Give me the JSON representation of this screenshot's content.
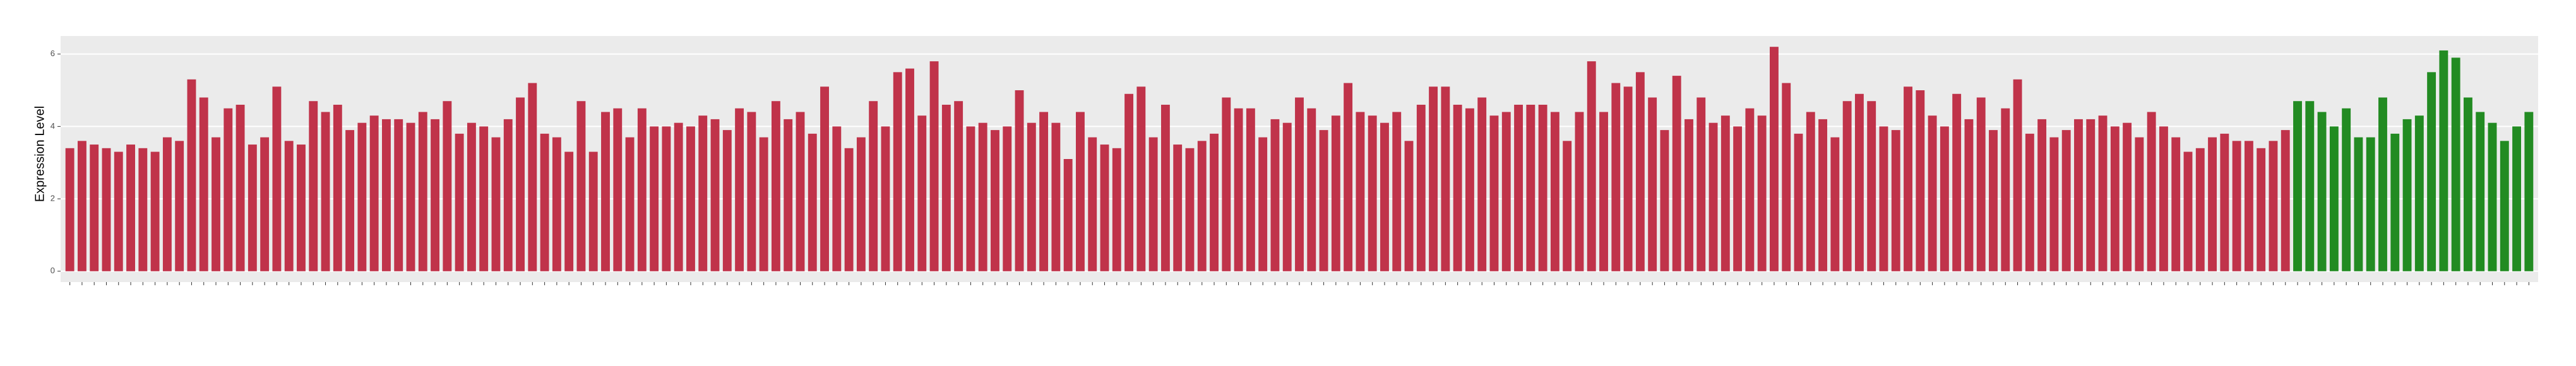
{
  "chart_data": {
    "type": "bar",
    "y_label": "Expression Level",
    "ylim": [
      -0.3,
      6.5
    ],
    "yticks": [
      0,
      2,
      4,
      6
    ],
    "grid": true,
    "groups": [
      {
        "color": "#c0334a",
        "values": [
          3.4,
          3.6,
          3.5,
          3.4,
          3.3,
          3.5,
          3.4,
          3.3,
          3.7,
          3.6,
          5.3,
          4.8,
          3.7,
          4.5,
          4.6,
          3.5,
          3.7,
          5.1,
          3.6,
          3.5,
          4.7,
          4.4,
          4.6,
          3.9,
          4.1,
          4.3,
          4.2,
          4.2,
          4.1,
          4.4,
          4.2,
          4.7,
          3.8,
          4.1,
          4.0,
          3.7,
          4.2,
          4.8,
          5.2,
          3.8,
          3.7,
          3.3,
          4.7,
          3.3,
          4.4,
          4.5,
          3.7,
          4.5,
          4.0,
          4.0,
          4.1,
          4.0,
          4.3,
          4.2,
          3.9,
          4.5,
          4.4,
          3.7,
          4.7,
          4.2,
          4.4,
          3.8,
          5.1,
          4.0,
          3.4,
          3.7,
          4.7,
          4.0,
          5.5,
          5.6,
          4.3,
          5.8,
          4.6,
          4.7,
          4.0,
          4.1,
          3.9,
          4.0,
          5.0,
          4.1,
          4.4,
          4.1,
          3.1,
          4.4,
          3.7,
          3.5,
          3.4,
          4.9,
          5.1,
          3.7,
          4.6,
          3.5,
          3.4,
          3.6,
          3.8,
          4.8,
          4.5,
          4.5,
          3.7,
          4.2,
          4.1,
          4.8,
          4.5,
          3.9,
          4.3,
          5.2,
          4.4,
          4.3,
          4.1,
          4.4,
          3.6,
          4.6,
          5.1,
          5.1,
          4.6,
          4.5,
          4.8,
          4.3,
          4.4,
          4.6,
          4.6,
          4.6,
          4.4,
          3.6,
          4.4,
          5.8,
          4.4,
          5.2,
          5.1,
          5.5,
          4.8,
          3.9,
          5.4,
          4.2,
          4.8,
          4.1,
          4.3,
          4.0,
          4.5,
          4.3,
          6.2,
          5.2,
          3.8,
          4.4,
          4.2,
          3.7,
          4.7,
          4.9,
          4.7,
          4.0,
          3.9,
          5.1,
          5.0,
          4.3,
          4.0,
          4.9,
          4.2,
          4.8,
          3.9,
          4.5,
          5.3,
          3.8,
          4.2,
          3.7,
          3.9,
          4.2,
          4.2,
          4.3,
          4.0,
          4.1,
          3.7,
          4.4,
          4.0,
          3.7,
          3.3,
          3.4,
          3.7,
          3.8,
          3.6,
          3.6,
          3.4,
          3.6,
          3.9
        ]
      },
      {
        "color": "#228b22",
        "values": [
          4.7,
          4.7,
          4.4,
          4.0,
          4.5,
          3.7,
          3.7,
          4.8,
          3.8,
          4.2,
          4.3,
          5.5,
          6.1,
          5.9,
          4.8,
          4.4,
          4.1,
          3.6,
          4.0,
          4.4
        ]
      }
    ]
  }
}
